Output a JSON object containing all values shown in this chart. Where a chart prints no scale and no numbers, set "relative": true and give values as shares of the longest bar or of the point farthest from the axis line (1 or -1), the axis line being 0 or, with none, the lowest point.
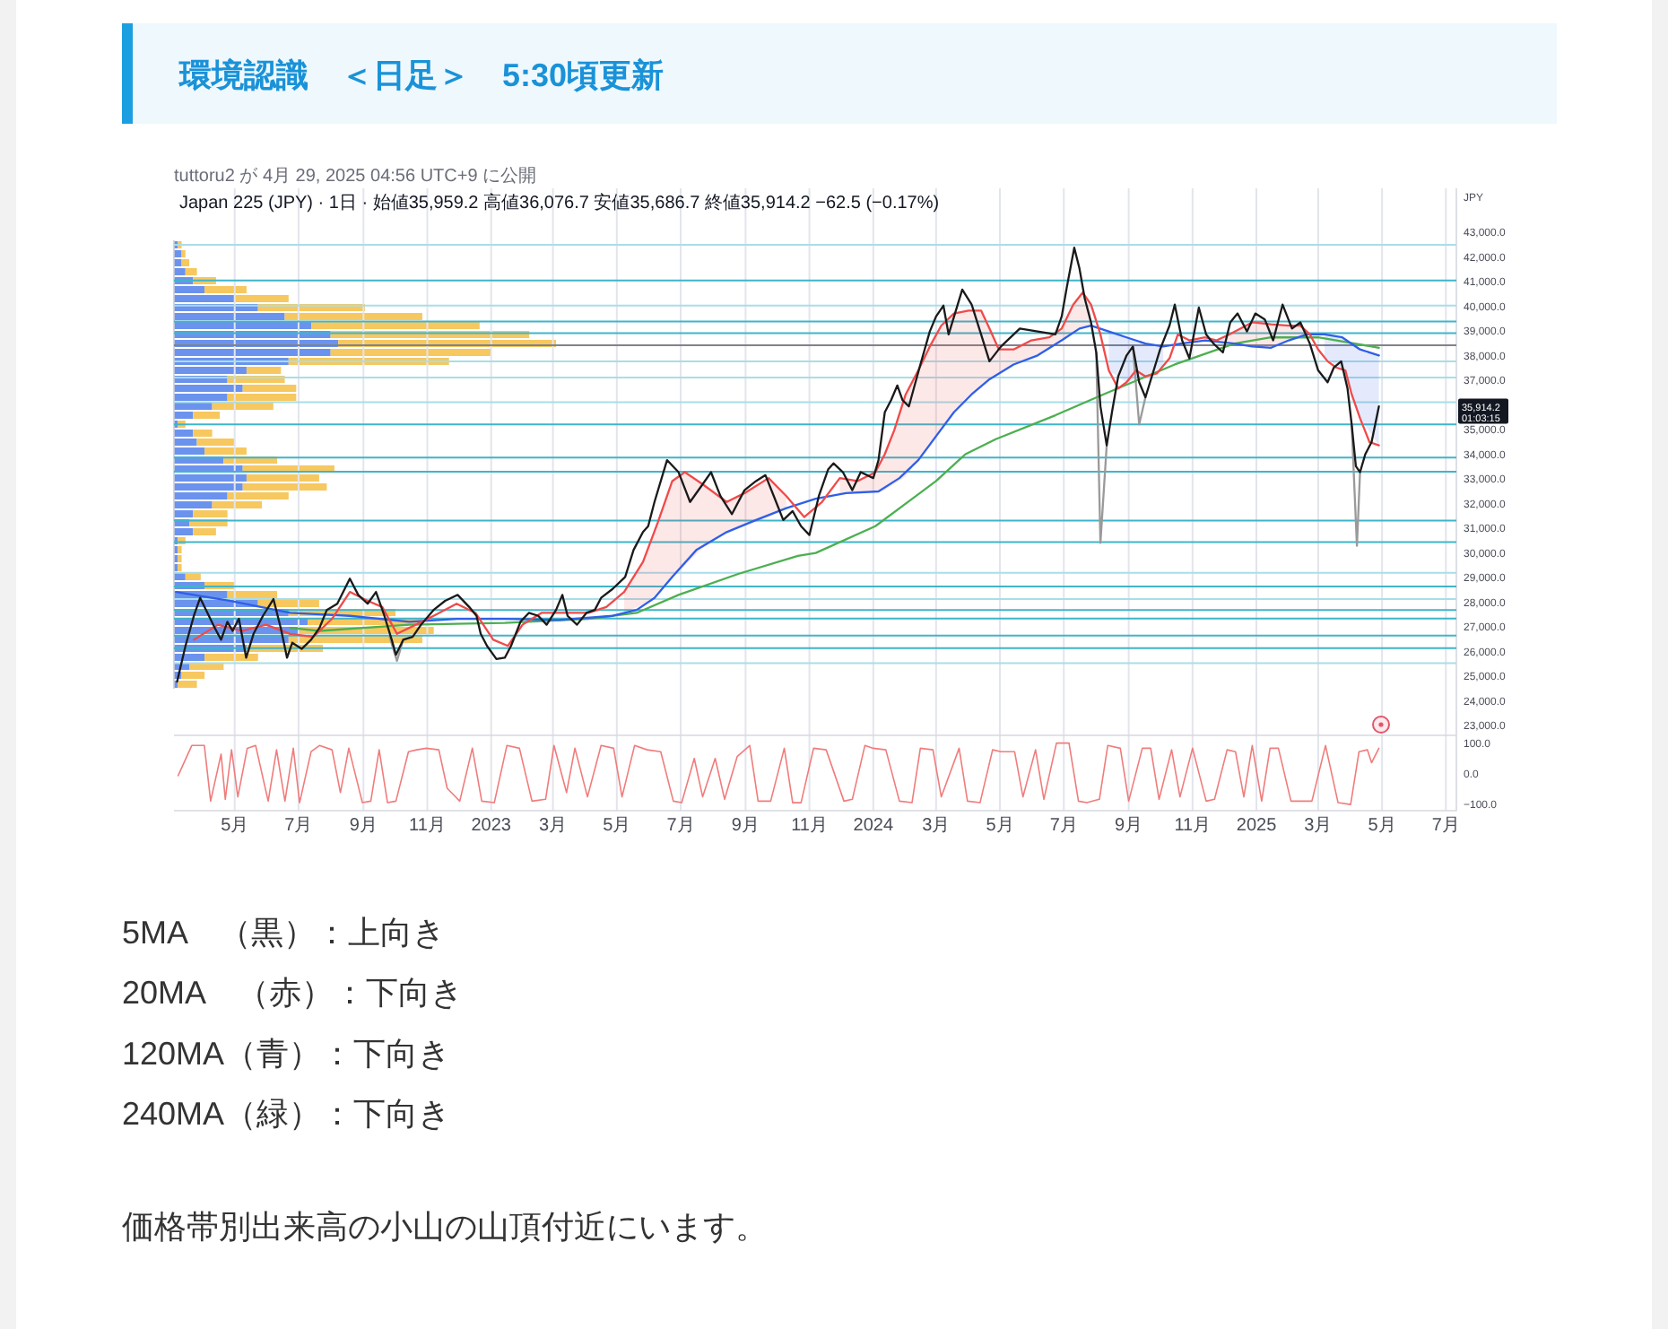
{
  "chart_data": [
    {
      "type": "line",
      "title": "環境認識　＜日足＞　5:30頃更新",
      "subtitle": "Japan 225 (JPY) · 1日 · 始値35,959.2 高値36,076.7 安値35,686.7 終値35,914.2 −62.5 (−0.17%)",
      "ylabel": "JPY",
      "annotations": [
        "tuttoru2 が 4月 29, 2025 04:56 UTC+9 に公開",
        "35,914.2",
        "01:03:15",
        "5MA　（黒）：上向き",
        "20MA　（赤）：下向き",
        "120MA（青）：下向き",
        "240MA（緑）：下向き",
        "価格帯別出来高の小山の山頂付近にいます。"
      ],
      "xlim": [
        "2022-03-04",
        "2025-07-11"
      ],
      "xticks": [
        {
          "value": "2022-05-01",
          "label": null
        },
        {
          "value": "2022-07-01",
          "label": null
        },
        {
          "value": "2022-09-01",
          "label": null
        },
        {
          "value": "2022-11-01",
          "label": null
        },
        {
          "value": "2023-01-01",
          "label": null
        },
        {
          "value": "2023-03-01",
          "label": null
        },
        {
          "value": "2023-05-01",
          "label": null
        },
        {
          "value": "2023-07-01",
          "label": null
        },
        {
          "value": "2023-09-01",
          "label": null
        },
        {
          "value": "2023-11-01",
          "label": null
        },
        {
          "value": "2024-01-01",
          "label": null
        },
        {
          "value": "2024-03-01",
          "label": null
        },
        {
          "value": "2024-05-01",
          "label": null
        },
        {
          "value": "2024-07-01",
          "label": null
        },
        {
          "value": "2024-09-01",
          "label": null
        },
        {
          "value": "2024-11-01",
          "label": null
        },
        {
          "value": "2025-01-01",
          "label": null
        },
        {
          "value": "2025-03-01",
          "label": null
        },
        {
          "value": "2025-05-01",
          "label": null
        },
        {
          "value": "2025-07-01",
          "label": null
        }
      ],
      "ylim": [
        22600,
        44800
      ],
      "yticks": [
        {
          "value": 23000,
          "label": "23,000.0"
        },
        {
          "value": 24000,
          "label": "24,000.0"
        },
        {
          "value": 25000,
          "label": "25,000.0"
        },
        {
          "value": 26000,
          "label": "26,000.0"
        },
        {
          "value": 27000,
          "label": "27,000.0"
        },
        {
          "value": 28000,
          "label": "28,000.0"
        },
        {
          "value": 29000,
          "label": "29,000.0"
        },
        {
          "value": 30000,
          "label": "30,000.0"
        },
        {
          "value": 31000,
          "label": "31,000.0"
        },
        {
          "value": 32000,
          "label": "32,000.0"
        },
        {
          "value": 33000,
          "label": "33,000.0"
        },
        {
          "value": 34000,
          "label": "34,000.0"
        },
        {
          "value": 35000,
          "label": "35,000.0"
        },
        {
          "value": 36000,
          "label": null
        },
        {
          "value": 37000,
          "label": "37,000.0"
        },
        {
          "value": 38000,
          "label": "38,000.0"
        },
        {
          "value": 39000,
          "label": "39,000.0"
        },
        {
          "value": 40000,
          "label": "40,000.0"
        },
        {
          "value": 41000,
          "label": "41,000.0"
        },
        {
          "value": 42000,
          "label": "42,000.0"
        },
        {
          "value": 43000,
          "label": "43,000.0"
        }
      ],
      "tick_labels": "y",
      "grid": "x",
      "ref_lines": [
        {
          "axis": "y",
          "value": 42510,
          "color": "#a8dee8"
        },
        {
          "axis": "y",
          "value": 41060,
          "color": "#3fb5c9"
        },
        {
          "axis": "y",
          "value": 40040,
          "color": "#a8dee8"
        },
        {
          "axis": "y",
          "value": 39400,
          "color": "#3fb5c9"
        },
        {
          "axis": "y",
          "value": 38920,
          "color": "#3fb5c9"
        },
        {
          "axis": "y",
          "value": 38430,
          "color": "#80838c"
        },
        {
          "axis": "y",
          "value": 37780,
          "color": "#a8dee8"
        },
        {
          "axis": "y",
          "value": 37120,
          "color": "#a8dee8"
        },
        {
          "axis": "y",
          "value": 36120,
          "color": "#a8dee8"
        },
        {
          "axis": "y",
          "value": 35220,
          "color": "#3fb5c9"
        },
        {
          "axis": "y",
          "value": 33870,
          "color": "#3fb5c9"
        },
        {
          "axis": "y",
          "value": 33300,
          "color": "#3fb5c9"
        },
        {
          "axis": "y",
          "value": 31320,
          "color": "#3fb5c9"
        },
        {
          "axis": "y",
          "value": 30440,
          "color": "#3fb5c9"
        },
        {
          "axis": "y",
          "value": 29200,
          "color": "#a8dee8"
        },
        {
          "axis": "y",
          "value": 28640,
          "color": "#3fb5c9"
        },
        {
          "axis": "y",
          "value": 28130,
          "color": "#a8dee8"
        },
        {
          "axis": "y",
          "value": 27690,
          "color": "#3fb5c9"
        },
        {
          "axis": "y",
          "value": 27340,
          "color": "#3fb5c9"
        },
        {
          "axis": "y",
          "value": 26650,
          "color": "#3fb5c9"
        },
        {
          "axis": "y",
          "value": 26140,
          "color": "#3fb5c9"
        },
        {
          "axis": "y",
          "value": 25530,
          "color": "#a8dee8"
        }
      ],
      "series": [
        {
          "color": "#9a9a9a",
          "x": [
            "2022-09-26",
            "2022-10-03",
            "2022-10-09"
          ],
          "values": [
            26600,
            25620,
            26480
          ]
        },
        {
          "color": "#9a9a9a",
          "x": [
            "2024-08-01",
            "2024-08-05",
            "2024-08-11"
          ],
          "values": [
            38140,
            30410,
            34370
          ]
        },
        {
          "color": "#9a9a9a",
          "x": [
            "2024-09-05",
            "2024-09-11",
            "2024-09-17"
          ],
          "values": [
            38380,
            35220,
            36320
          ]
        },
        {
          "color": "#9a9a9a",
          "x": [
            "2025-04-02",
            "2025-04-07",
            "2025-04-10"
          ],
          "values": [
            35220,
            30290,
            33280
          ]
        },
        {
          "color": "#4caf50",
          "x": [
            "2022-06-23",
            "2022-07-21",
            "2022-10-15",
            "2023-01-14",
            "2023-04-04",
            "2023-05-20",
            "2023-06-29",
            "2023-08-25",
            "2023-10-21",
            "2023-11-07",
            "2024-01-03",
            "2024-03-01",
            "2024-03-29",
            "2024-04-27",
            "2024-06-23",
            "2024-08-08",
            "2024-10-15",
            "2024-12-11",
            "2025-01-15",
            "2025-03-01",
            "2025-04-05",
            "2025-04-28"
          ],
          "values": [
            26960,
            26840,
            27090,
            27160,
            27330,
            27570,
            28300,
            29150,
            29880,
            30000,
            31090,
            32920,
            34010,
            34620,
            35590,
            36440,
            37650,
            38500,
            38750,
            38750,
            38500,
            38330
          ]
        },
        {
          "color": "#2f5fe8",
          "x": [
            "2022-03-06",
            "2022-04-26",
            "2022-06-23",
            "2022-08-19",
            "2022-10-15",
            "2022-11-30",
            "2023-01-14",
            "2023-03-07",
            "2023-04-27",
            "2023-05-20",
            "2023-06-06",
            "2023-06-23",
            "2023-07-16",
            "2023-08-14",
            "2023-09-11",
            "2023-10-10",
            "2023-11-07",
            "2023-12-06",
            "2024-01-06",
            "2024-01-26",
            "2024-02-13",
            "2024-03-01",
            "2024-03-18",
            "2024-04-04",
            "2024-04-21",
            "2024-05-14",
            "2024-06-06",
            "2024-06-29",
            "2024-07-16",
            "2024-07-27",
            "2024-08-13",
            "2024-08-30",
            "2024-09-17",
            "2024-10-04",
            "2024-10-21",
            "2024-11-13",
            "2024-12-11",
            "2024-12-28",
            "2025-01-15",
            "2025-02-01",
            "2025-02-18",
            "2025-03-07",
            "2025-03-24",
            "2025-04-10",
            "2025-04-28"
          ],
          "values": [
            28420,
            28060,
            27570,
            27450,
            27210,
            27330,
            27330,
            27280,
            27450,
            27690,
            28180,
            29030,
            30120,
            30850,
            31340,
            31820,
            32200,
            32430,
            32500,
            33040,
            33770,
            34740,
            35710,
            36440,
            37050,
            37650,
            38020,
            38630,
            39110,
            39230,
            38990,
            38750,
            38500,
            38380,
            38500,
            38630,
            38500,
            38380,
            38330,
            38630,
            38870,
            38870,
            38750,
            38260,
            38020
          ],
          "lower": [
            null,
            null,
            null,
            null,
            null,
            null,
            null,
            null,
            null,
            null,
            null,
            null,
            null,
            null,
            null,
            null,
            null,
            null,
            null,
            null,
            null,
            null,
            null,
            null,
            null,
            null,
            null,
            null,
            null,
            null,
            37410,
            36930,
            37170,
            37600,
            null,
            null,
            null,
            null,
            null,
            null,
            null,
            37950,
            37450,
            35470,
            34370
          ],
          "upper": [
            null,
            null,
            null,
            null,
            null,
            null,
            null,
            null,
            null,
            null,
            null,
            null,
            null,
            null,
            null,
            null,
            null,
            null,
            null,
            null,
            null,
            null,
            null,
            null,
            null,
            null,
            null,
            null,
            null,
            null,
            38990,
            38750,
            38500,
            38380,
            null,
            null,
            null,
            null,
            null,
            null,
            null,
            38870,
            38750,
            38260,
            38020
          ]
        },
        {
          "color": "#f04a4a",
          "x": [
            "2022-03-23",
            "2022-04-15",
            "2022-05-08",
            "2022-05-31",
            "2022-06-23",
            "2022-07-15",
            "2022-08-02",
            "2022-08-19",
            "2022-09-05",
            "2022-09-19",
            "2022-10-03",
            "2022-10-21",
            "2022-11-07",
            "2022-11-29",
            "2022-12-17",
            "2023-01-03",
            "2023-01-17",
            "2023-01-31",
            "2023-02-18",
            "2023-03-12",
            "2023-04-04",
            "2023-04-21",
            "2023-05-08",
            "2023-05-26",
            "2023-06-09",
            "2023-06-23",
            "2023-07-05",
            "2023-07-22",
            "2023-08-14",
            "2023-08-31",
            "2023-09-23",
            "2023-10-10",
            "2023-10-27",
            "2023-11-13",
            "2023-11-30",
            "2023-12-17",
            "2024-01-03",
            "2024-01-12",
            "2024-01-21",
            "2024-02-01",
            "2024-02-13",
            "2024-02-24",
            "2024-03-06",
            "2024-03-18",
            "2024-04-01",
            "2024-04-13",
            "2024-04-21",
            "2024-04-30",
            "2024-05-14",
            "2024-05-31",
            "2024-06-17",
            "2024-06-29",
            "2024-07-10",
            "2024-07-19",
            "2024-07-27",
            "2024-08-05",
            "2024-08-13",
            "2024-08-22",
            "2024-08-30",
            "2024-09-08",
            "2024-09-17",
            "2024-09-28",
            "2024-10-10",
            "2024-10-18",
            "2024-10-29",
            "2024-11-13",
            "2024-11-24",
            "2024-12-06",
            "2024-12-17",
            "2024-12-28",
            "2025-01-15",
            "2025-02-01",
            "2025-02-12",
            "2025-02-21",
            "2025-03-01",
            "2025-03-10",
            "2025-03-18",
            "2025-03-27",
            "2025-04-02",
            "2025-04-10",
            "2025-04-19",
            "2025-04-28"
          ],
          "values": [
            26480,
            27090,
            26840,
            27090,
            26720,
            26600,
            27330,
            28420,
            28060,
            27810,
            26720,
            27090,
            27450,
            27940,
            27570,
            26480,
            26230,
            27090,
            27570,
            27570,
            27570,
            27810,
            28420,
            29640,
            31220,
            32920,
            33280,
            32790,
            32070,
            32430,
            33040,
            32310,
            31460,
            32070,
            33040,
            32920,
            33280,
            34010,
            34980,
            36440,
            37410,
            38380,
            39230,
            39720,
            39840,
            39840,
            39110,
            38260,
            38260,
            38630,
            38750,
            39110,
            40080,
            40570,
            40080,
            38870,
            37410,
            36680,
            36930,
            37410,
            37170,
            37290,
            37900,
            38870,
            38630,
            38750,
            38630,
            38870,
            39110,
            39360,
            39280,
            39230,
            39230,
            38870,
            38260,
            37780,
            37530,
            37410,
            36440,
            35470,
            34500,
            34370
          ],
          "lower": [
            null,
            null,
            null,
            null,
            null,
            null,
            null,
            null,
            null,
            null,
            null,
            null,
            null,
            null,
            null,
            null,
            null,
            null,
            null,
            null,
            null,
            null,
            27600,
            27900,
            28350,
            29000,
            29500,
            30200,
            30850,
            31100,
            31450,
            31820,
            null,
            null,
            32350,
            32450,
            32500,
            32550,
            32800,
            33100,
            33770,
            34300,
            35000,
            35710,
            36300,
            36700,
            37050,
            37300,
            37650,
            37950,
            38250,
            38630,
            38900,
            39150,
            39230,
            null,
            null,
            null,
            null,
            null,
            null,
            null,
            null,
            null,
            null,
            38630,
            38580,
            38530,
            38480,
            38380,
            38330,
            38630,
            38800,
            38870,
            null,
            null,
            null,
            null,
            null,
            null,
            null,
            null
          ],
          "upper": [
            null,
            null,
            null,
            null,
            null,
            null,
            null,
            null,
            null,
            null,
            null,
            null,
            null,
            null,
            null,
            null,
            null,
            null,
            null,
            null,
            null,
            null,
            28420,
            29640,
            31220,
            32920,
            33280,
            32790,
            32070,
            32430,
            33040,
            32310,
            null,
            null,
            33040,
            32920,
            33280,
            34010,
            34980,
            36440,
            37410,
            38380,
            39230,
            39720,
            39840,
            39840,
            39110,
            38260,
            38260,
            38630,
            38750,
            39110,
            40080,
            40570,
            40080,
            null,
            null,
            null,
            null,
            null,
            null,
            null,
            null,
            null,
            null,
            38750,
            38630,
            38870,
            39110,
            39360,
            39280,
            39230,
            39230,
            38870,
            null,
            null,
            null,
            null,
            null,
            null,
            null,
            null
          ]
        },
        {
          "color": "#1a1a1a",
          "x": [
            "2022-03-07",
            "2022-03-15",
            "2022-03-23",
            "2022-03-29",
            "2022-04-05",
            "2022-04-12",
            "2022-04-18",
            "2022-04-24",
            "2022-04-29",
            "2022-05-05",
            "2022-05-12",
            "2022-05-19",
            "2022-05-28",
            "2022-06-07",
            "2022-06-14",
            "2022-06-20",
            "2022-06-25",
            "2022-07-04",
            "2022-07-13",
            "2022-07-21",
            "2022-07-28",
            "2022-08-07",
            "2022-08-19",
            "2022-08-27",
            "2022-09-05",
            "2022-09-13",
            "2022-09-21",
            "2022-09-28",
            "2022-10-02",
            "2022-10-09",
            "2022-10-18",
            "2022-10-26",
            "2022-11-07",
            "2022-11-18",
            "2022-11-30",
            "2022-12-11",
            "2022-12-18",
            "2022-12-22",
            "2022-12-28",
            "2023-01-06",
            "2023-01-14",
            "2023-01-20",
            "2023-01-29",
            "2023-02-06",
            "2023-02-15",
            "2023-02-23",
            "2023-03-04",
            "2023-03-10",
            "2023-03-15",
            "2023-03-24",
            "2023-04-02",
            "2023-04-10",
            "2023-04-16",
            "2023-04-27",
            "2023-05-09",
            "2023-05-17",
            "2023-05-26",
            "2023-05-31",
            "2023-06-06",
            "2023-06-18",
            "2023-06-29",
            "2023-07-10",
            "2023-07-22",
            "2023-07-30",
            "2023-08-08",
            "2023-08-19",
            "2023-08-31",
            "2023-09-11",
            "2023-09-20",
            "2023-09-28",
            "2023-10-07",
            "2023-10-16",
            "2023-10-24",
            "2023-11-01",
            "2023-11-10",
            "2023-11-19",
            "2023-11-24",
            "2023-12-03",
            "2023-12-12",
            "2023-12-20",
            "2024-01-01",
            "2024-01-06",
            "2024-01-12",
            "2024-01-18",
            "2024-01-24",
            "2024-01-29",
            "2024-02-04",
            "2024-02-15",
            "2024-02-24",
            "2024-03-01",
            "2024-03-08",
            "2024-03-13",
            "2024-03-26",
            "2024-04-04",
            "2024-04-13",
            "2024-04-21",
            "2024-05-02",
            "2024-05-20",
            "2024-06-06",
            "2024-06-23",
            "2024-06-29",
            "2024-07-04",
            "2024-07-11",
            "2024-07-16",
            "2024-07-21",
            "2024-07-27",
            "2024-08-01",
            "2024-08-05",
            "2024-08-11",
            "2024-08-16",
            "2024-08-22",
            "2024-08-30",
            "2024-09-05",
            "2024-09-11",
            "2024-09-17",
            "2024-10-01",
            "2024-10-10",
            "2024-10-15",
            "2024-10-22",
            "2024-10-29",
            "2024-11-07",
            "2024-11-14",
            "2024-11-21",
            "2024-11-30",
            "2024-12-07",
            "2024-12-14",
            "2024-12-23",
            "2024-12-31",
            "2025-01-09",
            "2025-01-17",
            "2025-01-26",
            "2025-02-04",
            "2025-02-12",
            "2025-02-21",
            "2025-03-01",
            "2025-03-10",
            "2025-03-16",
            "2025-03-23",
            "2025-03-29",
            "2025-04-02",
            "2025-04-06",
            "2025-04-10",
            "2025-04-15",
            "2025-04-21",
            "2025-04-28"
          ],
          "values": [
            24780,
            26230,
            27450,
            28180,
            27570,
            26960,
            26480,
            27210,
            26840,
            27330,
            25750,
            26720,
            27450,
            28130,
            26960,
            25750,
            26360,
            26110,
            26480,
            26960,
            27690,
            27940,
            28960,
            28300,
            27940,
            28420,
            27450,
            26480,
            25870,
            26480,
            26600,
            27090,
            27690,
            28060,
            28300,
            27810,
            27450,
            26720,
            26230,
            25700,
            25750,
            26230,
            27210,
            27570,
            27450,
            27090,
            27690,
            28300,
            27450,
            27090,
            27570,
            27690,
            28180,
            28540,
            29030,
            30120,
            30850,
            31090,
            32070,
            33770,
            33280,
            32070,
            32790,
            33280,
            32310,
            31580,
            32550,
            32920,
            33160,
            32310,
            31340,
            31700,
            31090,
            30730,
            32310,
            33400,
            33640,
            33280,
            32550,
            33280,
            33040,
            33770,
            35710,
            36200,
            36800,
            36200,
            35950,
            37650,
            38990,
            39600,
            40040,
            38870,
            40690,
            40080,
            38870,
            37780,
            38380,
            39110,
            38990,
            38870,
            39600,
            40810,
            42390,
            41540,
            40330,
            39360,
            38140,
            35950,
            34370,
            35710,
            37170,
            38020,
            38380,
            36930,
            36320,
            38260,
            39230,
            40080,
            38630,
            37900,
            39960,
            38870,
            38500,
            38140,
            39360,
            39720,
            38990,
            39720,
            39480,
            38630,
            40080,
            39110,
            39360,
            38500,
            37410,
            36930,
            37530,
            37780,
            36680,
            35220,
            33520,
            33280,
            34010,
            34500,
            35950
          ]
        }
      ]
    },
    {
      "type": "bar",
      "orientation": "horizontal",
      "stacked": true,
      "relative": true,
      "categories": [
        null,
        null,
        null,
        null,
        null,
        null,
        null,
        null,
        null,
        null,
        null,
        null,
        null,
        null,
        null,
        null,
        null,
        null,
        null,
        null,
        null,
        null,
        null,
        null,
        null,
        null,
        null,
        null,
        null,
        null,
        null,
        null,
        null,
        null,
        null,
        null,
        null,
        null,
        null,
        null,
        null,
        null,
        null,
        null,
        null,
        null,
        null,
        null,
        null,
        null
      ],
      "series": [
        {
          "color": "#6b93ee",
          "values": [
            0.01,
            0.02,
            0.02,
            0.03,
            0.05,
            0.08,
            0.16,
            0.22,
            0.29,
            0.36,
            0.41,
            0.43,
            0.41,
            0.3,
            0.19,
            0.14,
            0.18,
            0.14,
            0.1,
            0.05,
            0.01,
            0.05,
            0.06,
            0.08,
            0.13,
            0.18,
            0.19,
            0.18,
            0.14,
            0.1,
            0.05,
            0.04,
            0.05,
            0.01,
            0.01,
            0.01,
            0.01,
            0.03,
            0.08,
            0.14,
            0.22,
            0.3,
            0.35,
            0.33,
            0.3,
            0.19,
            0.08,
            0.04,
            0.02,
            0.01
          ]
        },
        {
          "color": "#f6c85f",
          "values": [
            0.01,
            0.01,
            0.02,
            0.03,
            0.06,
            0.11,
            0.14,
            0.28,
            0.36,
            0.44,
            0.52,
            0.57,
            0.42,
            0.42,
            0.09,
            0.15,
            0.14,
            0.18,
            0.16,
            0.07,
            0.02,
            0.05,
            0.1,
            0.11,
            0.14,
            0.24,
            0.19,
            0.22,
            0.16,
            0.13,
            0.09,
            0.1,
            0.06,
            0.02,
            0.01,
            0.01,
            0.01,
            0.04,
            0.08,
            0.13,
            0.16,
            0.28,
            0.3,
            0.35,
            0.35,
            0.2,
            0.14,
            0.09,
            0.06,
            0.05
          ]
        }
      ]
    },
    {
      "type": "line",
      "xlim": [
        "2022-03-04",
        "2025-07-11"
      ],
      "xticks": [
        {
          "value": "2022-05-01",
          "label": "5月"
        },
        {
          "value": "2022-07-01",
          "label": "7月"
        },
        {
          "value": "2022-09-01",
          "label": "9月"
        },
        {
          "value": "2022-11-01",
          "label": "11月"
        },
        {
          "value": "2023-01-01",
          "label": "2023"
        },
        {
          "value": "2023-03-01",
          "label": "3月"
        },
        {
          "value": "2023-05-01",
          "label": "5月"
        },
        {
          "value": "2023-07-01",
          "label": "7月"
        },
        {
          "value": "2023-09-01",
          "label": "9月"
        },
        {
          "value": "2023-11-01",
          "label": "11月"
        },
        {
          "value": "2024-01-01",
          "label": "2024"
        },
        {
          "value": "2024-03-01",
          "label": "3月"
        },
        {
          "value": "2024-05-01",
          "label": "5月"
        },
        {
          "value": "2024-07-01",
          "label": "7月"
        },
        {
          "value": "2024-09-01",
          "label": "9月"
        },
        {
          "value": "2024-11-01",
          "label": "11月"
        },
        {
          "value": "2025-01-01",
          "label": "2025"
        },
        {
          "value": "2025-03-01",
          "label": "3月"
        },
        {
          "value": "2025-05-01",
          "label": "5月"
        },
        {
          "value": "2025-07-01",
          "label": "7月"
        }
      ],
      "ylim": [
        -120,
        125
      ],
      "yticks": [
        {
          "value": 100,
          "label": "100.0"
        },
        {
          "value": 0,
          "label": "0.0"
        },
        {
          "value": -100,
          "label": "−100.0"
        }
      ],
      "grid": "x",
      "series": [
        {
          "color": "#f07c7c",
          "x": [
            "2022-03-08",
            "2022-03-21",
            "2022-04-02",
            "2022-04-08",
            "2022-04-18",
            "2022-04-22",
            "2022-04-28",
            "2022-05-04",
            "2022-05-13",
            "2022-05-21",
            "2022-06-02",
            "2022-06-10",
            "2022-06-18",
            "2022-06-26",
            "2022-07-02",
            "2022-07-13",
            "2022-07-21",
            "2022-08-02",
            "2022-08-10",
            "2022-08-18",
            "2022-08-31",
            "2022-09-08",
            "2022-09-16",
            "2022-09-24",
            "2022-10-02",
            "2022-10-14",
            "2022-10-22",
            "2022-10-31",
            "2022-11-12",
            "2022-11-20",
            "2022-12-02",
            "2022-12-14",
            "2022-12-23",
            "2023-01-04",
            "2023-01-16",
            "2023-01-28",
            "2023-02-09",
            "2023-02-22",
            "2023-03-02",
            "2023-03-14",
            "2023-03-22",
            "2023-04-03",
            "2023-04-16",
            "2023-04-28",
            "2023-05-06",
            "2023-05-18",
            "2023-05-30",
            "2023-06-12",
            "2023-06-24",
            "2023-07-02",
            "2023-07-14",
            "2023-07-22",
            "2023-08-03",
            "2023-08-12",
            "2023-08-24",
            "2023-09-05",
            "2023-09-13",
            "2023-09-25",
            "2023-10-08",
            "2023-10-16",
            "2023-10-24",
            "2023-11-05",
            "2023-11-17",
            "2023-12-04",
            "2023-12-12",
            "2023-12-24",
            "2024-01-01",
            "2024-01-13",
            "2024-01-26",
            "2024-02-07",
            "2024-02-15",
            "2024-02-27",
            "2024-03-06",
            "2024-03-23",
            "2024-03-31",
            "2024-04-12",
            "2024-04-24",
            "2024-05-02",
            "2024-05-15",
            "2024-05-23",
            "2024-06-04",
            "2024-06-12",
            "2024-06-24",
            "2024-07-06",
            "2024-07-15",
            "2024-07-23",
            "2024-08-04",
            "2024-08-12",
            "2024-08-24",
            "2024-09-01",
            "2024-09-14",
            "2024-09-22",
            "2024-09-30",
            "2024-10-12",
            "2024-10-20",
            "2024-11-01",
            "2024-11-14",
            "2024-11-22",
            "2024-12-04",
            "2024-12-12",
            "2024-12-20",
            "2024-12-28",
            "2025-01-06",
            "2025-01-14",
            "2025-01-22",
            "2025-02-03",
            "2025-02-11",
            "2025-02-23",
            "2025-03-08",
            "2025-03-20",
            "2025-04-01",
            "2025-04-09",
            "2025-04-17",
            "2025-04-21",
            "2025-04-28"
          ],
          "values": [
            -6,
            92,
            92,
            -89,
            64,
            -83,
            78,
            -75,
            83,
            92,
            -89,
            78,
            -89,
            83,
            -94,
            72,
            92,
            78,
            -61,
            83,
            -94,
            -89,
            78,
            -94,
            -89,
            72,
            78,
            83,
            78,
            -47,
            -89,
            83,
            -89,
            -94,
            92,
            83,
            -89,
            -83,
            92,
            -61,
            83,
            -75,
            92,
            83,
            -75,
            92,
            78,
            72,
            -89,
            -94,
            50,
            -75,
            50,
            -83,
            56,
            92,
            -89,
            -89,
            83,
            -94,
            -94,
            83,
            78,
            -89,
            -83,
            92,
            83,
            78,
            -89,
            -94,
            83,
            78,
            -75,
            83,
            -89,
            -94,
            78,
            72,
            72,
            -75,
            78,
            -83,
            100,
            100,
            -89,
            -94,
            -83,
            92,
            83,
            -89,
            83,
            83,
            -83,
            78,
            -75,
            83,
            -89,
            -83,
            78,
            72,
            -75,
            92,
            -89,
            83,
            83,
            -89,
            -89,
            -89,
            92,
            -94,
            -100,
            72,
            78,
            36,
            83
          ]
        }
      ]
    }
  ]
}
